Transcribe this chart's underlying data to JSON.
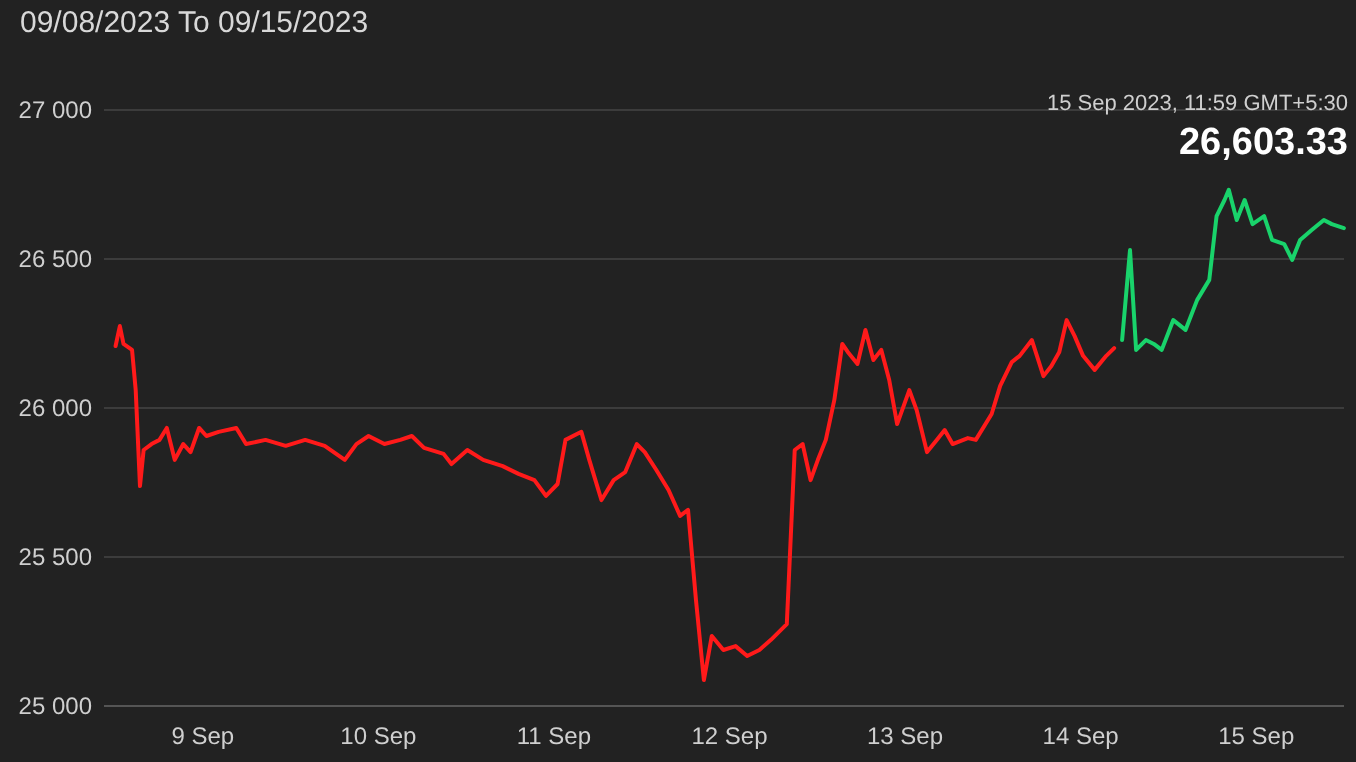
{
  "chart_data": {
    "type": "line",
    "title": "09/08/2023 To 09/15/2023",
    "x": [
      "2023-09-08T12:05",
      "2023-09-08T12:40",
      "2023-09-08T13:10",
      "2023-09-08T14:20",
      "2023-09-08T14:50",
      "2023-09-08T15:25",
      "2023-09-08T15:55",
      "2023-09-08T17:00",
      "2023-09-08T18:05",
      "2023-09-08T19:05",
      "2023-09-08T20:10",
      "2023-09-08T21:20",
      "2023-09-08T22:20",
      "2023-09-08T23:30",
      "2023-09-09T00:30",
      "2023-09-09T02:10",
      "2023-09-09T04:35",
      "2023-09-09T05:55",
      "2023-09-09T08:35",
      "2023-09-09T11:20",
      "2023-09-09T14:00",
      "2023-09-09T16:40",
      "2023-09-09T19:25",
      "2023-09-09T21:00",
      "2023-09-09T22:40",
      "2023-09-10T00:50",
      "2023-09-10T03:00",
      "2023-09-10T04:35",
      "2023-09-10T06:15",
      "2023-09-10T08:55",
      "2023-09-10T10:00",
      "2023-09-10T12:10",
      "2023-09-10T14:20",
      "2023-09-10T17:00",
      "2023-09-10T19:10",
      "2023-09-10T21:20",
      "2023-09-10T22:55",
      "2023-09-11T00:30",
      "2023-09-11T01:35",
      "2023-09-11T03:45",
      "2023-09-11T04:50",
      "2023-09-11T06:30",
      "2023-09-11T08:10",
      "2023-09-11T09:45",
      "2023-09-11T11:20",
      "2023-09-11T12:25",
      "2023-09-11T14:00",
      "2023-09-11T15:40",
      "2023-09-11T17:15",
      "2023-09-11T18:20",
      "2023-09-11T19:25",
      "2023-09-11T20:30",
      "2023-09-11T21:35",
      "2023-09-11T23:10",
      "2023-09-12T00:50",
      "2023-09-12T02:25",
      "2023-09-12T04:05",
      "2023-09-12T05:40",
      "2023-09-12T07:50",
      "2023-09-12T08:55",
      "2023-09-12T10:00",
      "2023-09-12T11:05",
      "2023-09-12T12:05",
      "2023-09-12T13:10",
      "2023-09-12T14:20",
      "2023-09-12T15:25",
      "2023-09-12T16:10",
      "2023-09-12T17:30",
      "2023-09-12T18:35",
      "2023-09-12T19:40",
      "2023-09-12T20:45",
      "2023-09-12T21:50",
      "2023-09-12T22:55",
      "2023-09-13T00:35",
      "2023-09-13T01:35",
      "2023-09-13T03:00",
      "2023-09-13T04:20",
      "2023-09-13T05:25",
      "2023-09-13T06:30",
      "2023-09-13T08:35",
      "2023-09-13T09:40",
      "2023-09-13T11:50",
      "2023-09-13T13:00",
      "2023-09-13T14:35",
      "2023-09-13T15:40",
      "2023-09-13T17:20",
      "2023-09-13T18:55",
      "2023-09-13T20:00",
      "2023-09-13T21:05",
      "2023-09-13T22:05",
      "2023-09-13T23:10",
      "2023-09-14T00:20",
      "2023-09-14T01:55",
      "2023-09-14T03:30",
      "2023-09-14T04:35",
      "2023-09-14T05:40",
      "2023-09-14T06:45",
      "2023-09-14T07:35",
      "2023-09-14T08:55",
      "2023-09-14T10:00",
      "2023-09-14T11:05",
      "2023-09-14T12:40",
      "2023-09-14T14:20",
      "2023-09-14T15:55",
      "2023-09-14T17:35",
      "2023-09-14T18:35",
      "2023-09-14T19:40",
      "2023-09-14T20:15",
      "2023-09-14T21:20",
      "2023-09-14T22:25",
      "2023-09-14T23:30",
      "2023-09-15T01:05",
      "2023-09-15T02:10",
      "2023-09-15T03:50",
      "2023-09-15T04:55",
      "2023-09-15T06:00",
      "2023-09-15T07:35",
      "2023-09-15T09:15",
      "2023-09-15T10:20",
      "2023-09-15T11:59"
    ],
    "series": [
      {
        "color": "#ff1a1a",
        "values": [
          26208,
          26275,
          26215,
          26195,
          26060,
          25738,
          25859,
          25879,
          25893,
          25933,
          25826,
          25879,
          25852,
          25933,
          25906,
          25920,
          25933,
          25879,
          25893,
          25873,
          25893,
          25873,
          25826,
          25879,
          25906,
          25879,
          25893,
          25906,
          25866,
          25846,
          25812,
          25859,
          25826,
          25805,
          25779,
          25758,
          25705,
          25745,
          25893,
          25920,
          25826,
          25691,
          25758,
          25785,
          25879,
          25852,
          25792,
          25725,
          25638,
          25658,
          25356,
          25087,
          25235,
          25188,
          25201,
          25168,
          25188,
          25222,
          25275,
          25859,
          25879,
          25758,
          25826,
          25893,
          26027,
          26215,
          26188,
          26148,
          26262,
          26161,
          26195,
          26094,
          25946,
          26060,
          25993,
          25852,
          25893,
          25926,
          25879,
          25899,
          25893,
          25980,
          26074,
          26154,
          26175,
          26228,
          26107,
          26141,
          26188,
          26295,
          26242,
          26175,
          26128,
          26175,
          26201,
          null,
          null,
          null,
          null,
          null,
          null,
          null,
          null,
          null,
          null,
          null,
          null,
          null,
          null,
          null,
          null,
          null,
          null,
          null,
          null,
          null,
          null,
          null,
          null,
          null
        ]
      },
      {
        "color": "#19d36b",
        "values": [
          null,
          null,
          null,
          null,
          null,
          null,
          null,
          null,
          null,
          null,
          null,
          null,
          null,
          null,
          null,
          null,
          null,
          null,
          null,
          null,
          null,
          null,
          null,
          null,
          null,
          null,
          null,
          null,
          null,
          null,
          null,
          null,
          null,
          null,
          null,
          null,
          null,
          null,
          null,
          null,
          null,
          null,
          null,
          null,
          null,
          null,
          null,
          null,
          null,
          null,
          null,
          null,
          null,
          null,
          null,
          null,
          null,
          null,
          null,
          null,
          null,
          null,
          null,
          null,
          null,
          null,
          null,
          null,
          null,
          null,
          null,
          null,
          null,
          null,
          null,
          null,
          null,
          null,
          null,
          null,
          null,
          null,
          null,
          null,
          null,
          null,
          null,
          null,
          null,
          null,
          null,
          null,
          null,
          null,
          null,
          26228,
          26530,
          26195,
          26228,
          26215,
          26195,
          26295,
          26262,
          26362,
          26430,
          26644,
          26698,
          26732,
          26631,
          26698,
          26617,
          26644,
          26564,
          26550,
          26497,
          26564,
          26597,
          26631,
          26617,
          26603.33
        ]
      }
    ],
    "xlim": [
      "2023-09-08T10:30",
      "2023-09-15T12:00"
    ],
    "xticks": [
      {
        "value": "2023-09-09",
        "label": "9 Sep"
      },
      {
        "value": "2023-09-10",
        "label": "10 Sep"
      },
      {
        "value": "2023-09-11",
        "label": "11 Sep"
      },
      {
        "value": "2023-09-12",
        "label": "12 Sep"
      },
      {
        "value": "2023-09-13",
        "label": "13 Sep"
      },
      {
        "value": "2023-09-14",
        "label": "14 Sep"
      },
      {
        "value": "2023-09-15",
        "label": "15 Sep"
      }
    ],
    "ylim": [
      25000,
      27000
    ],
    "yticks": [
      {
        "value": 25000,
        "label": "25 000"
      },
      {
        "value": 25500,
        "label": "25 500"
      },
      {
        "value": 26000,
        "label": "26 000"
      },
      {
        "value": 26500,
        "label": "26 500"
      },
      {
        "value": 27000,
        "label": "27 000"
      }
    ],
    "grid": "y",
    "annotations": [
      "15 Sep 2023, 11:59 GMT+5:30",
      "26,603.33"
    ]
  }
}
